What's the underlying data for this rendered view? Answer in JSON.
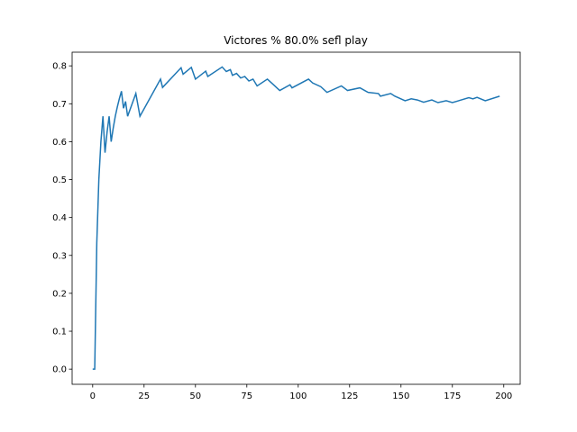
{
  "chart_data": {
    "type": "line",
    "title": "Victores % 80.0% sefl play",
    "x": [
      0,
      1,
      2,
      3,
      4,
      5,
      6,
      7,
      8,
      9,
      10,
      11,
      12,
      13,
      14,
      15,
      16,
      17,
      21,
      23,
      33,
      34,
      43,
      44,
      48,
      50,
      55,
      56,
      63,
      65,
      67,
      68,
      70,
      72,
      74,
      76,
      78,
      80,
      85,
      88,
      91,
      96,
      97,
      105,
      107,
      111,
      114,
      121,
      124,
      130,
      134,
      139,
      140,
      145,
      147,
      152,
      155,
      158,
      161,
      165,
      168,
      172,
      175,
      183,
      185,
      187,
      191,
      198
    ],
    "series": [
      {
        "color": "#1f77b4",
        "values": [
          0,
          0,
          0.333,
          0.5,
          0.6,
          0.667,
          0.571,
          0.625,
          0.667,
          0.6,
          0.636,
          0.667,
          0.692,
          0.714,
          0.733,
          0.688,
          0.706,
          0.667,
          0.727,
          0.667,
          0.765,
          0.743,
          0.795,
          0.778,
          0.796,
          0.765,
          0.786,
          0.772,
          0.797,
          0.785,
          0.79,
          0.775,
          0.78,
          0.768,
          0.772,
          0.76,
          0.765,
          0.747,
          0.765,
          0.75,
          0.735,
          0.75,
          0.742,
          0.765,
          0.755,
          0.745,
          0.73,
          0.747,
          0.735,
          0.742,
          0.73,
          0.727,
          0.72,
          0.727,
          0.72,
          0.708,
          0.713,
          0.71,
          0.704,
          0.71,
          0.703,
          0.708,
          0.703,
          0.716,
          0.713,
          0.717,
          0.708,
          0.72
        ]
      }
    ],
    "xlim": [
      -10,
      208
    ],
    "ylim": [
      -0.04,
      0.836
    ],
    "xticks": [
      0,
      25,
      50,
      75,
      100,
      125,
      150,
      175,
      200
    ],
    "yticks": [
      {
        "value": 0,
        "label": "0.0"
      },
      0.1,
      0.2,
      0.3,
      0.4,
      0.5,
      0.6,
      0.7,
      0.8
    ]
  }
}
